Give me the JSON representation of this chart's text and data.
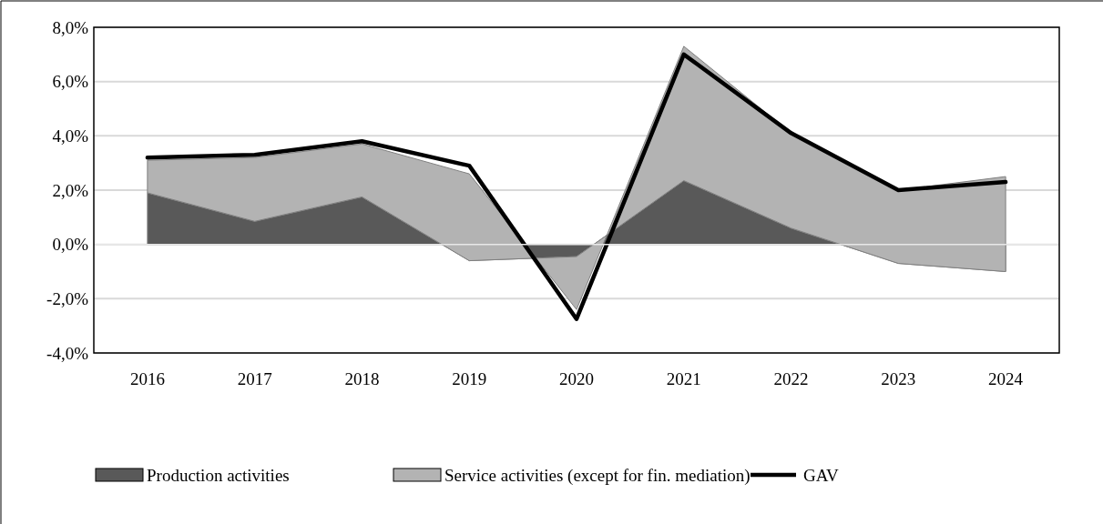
{
  "chart_data": {
    "type": "area",
    "stacked": true,
    "categories": [
      "2016",
      "2017",
      "2018",
      "2019",
      "2020",
      "2021",
      "2022",
      "2023",
      "2024"
    ],
    "series": [
      {
        "name": "Production activities",
        "color": "#595959",
        "values": [
          1.9,
          0.85,
          1.75,
          -0.6,
          -0.45,
          2.35,
          0.6,
          -0.7,
          -1.0
        ]
      },
      {
        "name": "Service activities (except for fin. mediation)",
        "color": "#b3b3b3",
        "values": [
          1.2,
          2.35,
          1.95,
          3.2,
          -1.95,
          4.95,
          3.5,
          2.7,
          3.5
        ]
      },
      {
        "name": "GAV",
        "type": "line",
        "color": "#000000",
        "values": [
          3.2,
          3.3,
          3.8,
          2.9,
          -2.75,
          7.0,
          4.1,
          2.0,
          2.3
        ]
      }
    ],
    "ylim": [
      -4,
      8
    ],
    "yticks": [
      {
        "value": -4,
        "label": "-4,0%"
      },
      {
        "value": -2,
        "label": "-2,0%"
      },
      {
        "value": 0,
        "label": "0,0%"
      },
      {
        "value": 2,
        "label": "2,0%"
      },
      {
        "value": 4,
        "label": "4,0%"
      },
      {
        "value": 6,
        "label": "6,0%"
      },
      {
        "value": 8,
        "label": "8,0%"
      }
    ],
    "grid": "y",
    "legend": "bottom"
  }
}
